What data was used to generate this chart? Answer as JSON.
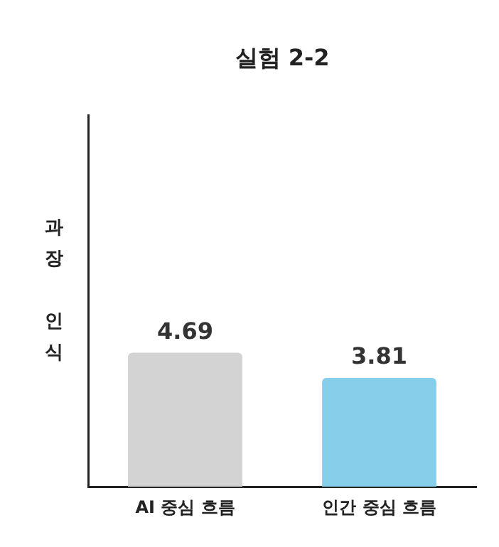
{
  "chart_data": {
    "type": "bar",
    "title": "실험 2-2",
    "ylabel": "과장 인식",
    "categories": [
      "AI 중심 흐름",
      "인간 중심 흐름"
    ],
    "values": [
      4.69,
      3.81
    ],
    "colors": [
      "#d3d3d3",
      "#87ceeb"
    ],
    "ylim": [
      0,
      13
    ],
    "data_labels": true,
    "grid": false,
    "legend": false,
    "tick_labels": "x"
  }
}
